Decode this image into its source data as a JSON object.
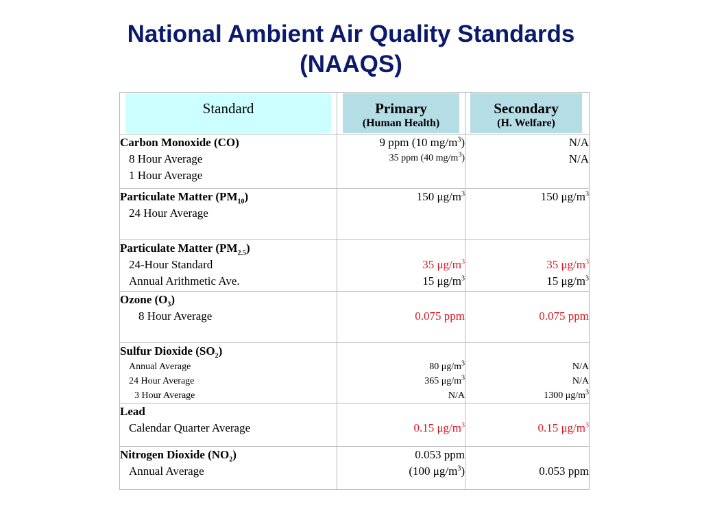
{
  "title": {
    "line1": "National Ambient Air Quality Standards",
    "line2": "(NAAQS)"
  },
  "colors": {
    "title": "#0b1a6b",
    "header_standard_bg": "#ccffff",
    "header_bg": "#b4dde6",
    "highlight": "#e0141e"
  },
  "headers": {
    "standard": "Standard",
    "primary": "Primary",
    "primary_sub": "(Human Health)",
    "secondary": "Secondary",
    "secondary_sub": "(H. Welfare)"
  },
  "rows": {
    "co": {
      "name": "Carbon Monoxide (CO)",
      "sub1": "8 Hour Average",
      "sub2": "1 Hour Average",
      "primary1_pre": "9 ppm (10 mg/m",
      "primary1_post": ")",
      "primary2_pre": "35 ppm (40 mg/m",
      "primary2_post": ")",
      "secondary1": "N/A",
      "secondary2": "N/A"
    },
    "pm10": {
      "name_pre": "Particulate Matter (PM",
      "name_sub": "10",
      "name_post": ")",
      "sub1": "24 Hour Average",
      "primary": "150 μg/m",
      "secondary": "150 μg/m"
    },
    "pm25": {
      "name_pre": "Particulate Matter (PM",
      "name_sub": "2.5",
      "name_post": ")",
      "sub1": "24-Hour Standard",
      "sub2": "Annual Arithmetic Ave.",
      "primary1": "35 μg/m",
      "primary2": "15 μg/m",
      "secondary1": "35 μg/m",
      "secondary2": "15 μg/m"
    },
    "o3": {
      "name_pre": "Ozone (O",
      "name_sub": "3",
      "name_post": ")",
      "sub1": "8 Hour Average",
      "primary": "0.075 ppm",
      "secondary": "0.075 ppm"
    },
    "so2": {
      "name_pre": "Sulfur Dioxide (SO",
      "name_sub": "2",
      "name_post": ")",
      "sub1": "Annual Average",
      "sub2": "24 Hour Average",
      "sub3": "3 Hour Average",
      "primary1": "80 μg/m",
      "primary2": "365 μg/m",
      "primary3": "N/A",
      "secondary1": "N/A",
      "secondary2": "N/A",
      "secondary3": "1300 μg/m"
    },
    "lead": {
      "name": "Lead",
      "sub1": "Calendar Quarter Average",
      "primary": "0.15 μg/m",
      "secondary": "0.15 μg/m"
    },
    "no2": {
      "name_pre": "Nitrogen Dioxide (NO",
      "name_sub": "2",
      "name_post": ")",
      "sub1": "Annual Average",
      "primary1": "0.053 ppm",
      "primary2_pre": "(100 μg/m",
      "primary2_post": ")",
      "secondary": "0.053 ppm"
    }
  },
  "unit_exponent": "3"
}
